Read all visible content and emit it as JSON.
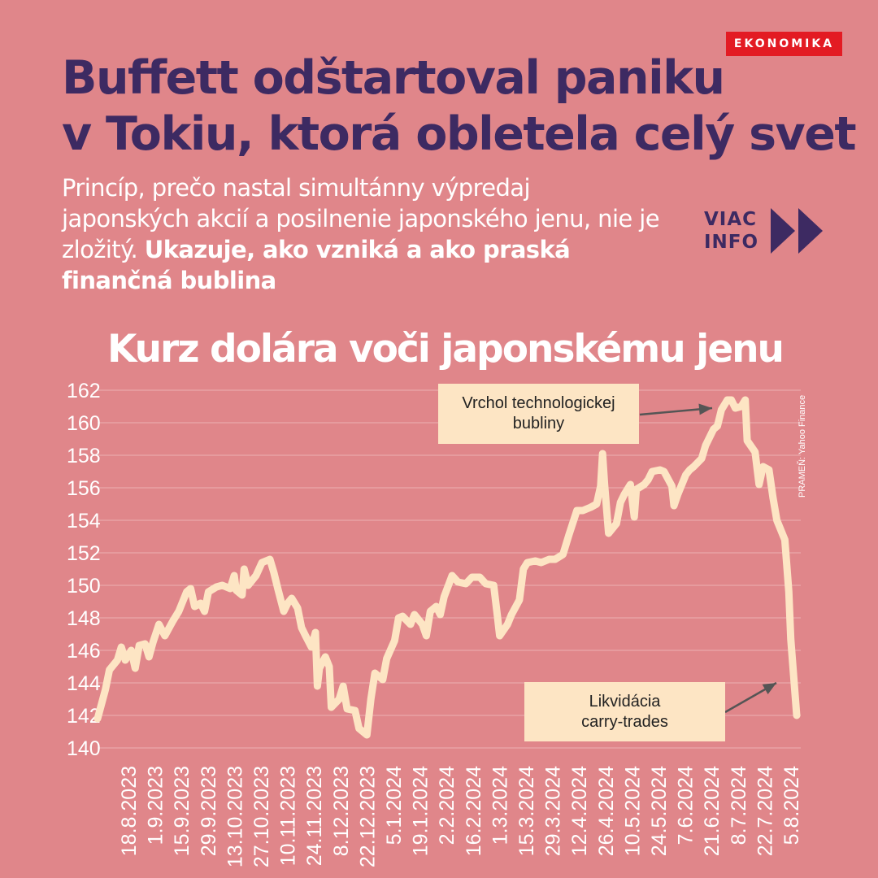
{
  "badge": "EKONOMIKA",
  "headline": {
    "line1": "Buffett odštartoval paniku",
    "line2": "v Tokiu, ktorá obletela celý svet"
  },
  "subtitle": {
    "regular": "Princíp, prečo nastal simultánny výpredaj japonských akcií a posilnenie japonského jenu, nie je zložitý. ",
    "bold": "Ukazuje, ako vzniká a ako praská finančná bublina"
  },
  "more_info": {
    "line1": "VIAC",
    "line2": "INFO"
  },
  "source": "PRAMEŇ: Yahoo Finance",
  "colors": {
    "background": "#e0868a",
    "line": "#fde5c4",
    "headline": "#3d2a62",
    "badge": "#e31b23",
    "callout_bg": "#fde5c4",
    "arrow": "#555555"
  },
  "chart_data": {
    "type": "line",
    "title": "Kurz dolára voči japonskému jenu",
    "xlabel": "",
    "ylabel": "",
    "ylim": [
      140,
      162
    ],
    "yticks": [
      162,
      160,
      158,
      156,
      154,
      152,
      150,
      148,
      146,
      144,
      142,
      140
    ],
    "grid": true,
    "x_tick_labels": [
      "18.8.2023",
      "1.9.2023",
      "15.9.2023",
      "29.9.2023",
      "13.10.2023",
      "27.10.2023",
      "10.11.2023",
      "24.11.2023",
      "8.12.2023",
      "22.12.2023",
      "5.1.2024",
      "19.1.2024",
      "2.2.2024",
      "16.2.2024",
      "1.3.2024",
      "15.3.2024",
      "29.3.2024",
      "12.4.2024",
      "26.4.2024",
      "10.5.2024",
      "24.5.2024",
      "7.6.2024",
      "21.6.2024",
      "8.7.2024",
      "22.7.2024",
      "5.8.2024"
    ],
    "x_start": "2023-08-18",
    "series": [
      {
        "name": "",
        "points": [
          [
            "2023-08-18",
            141.8
          ],
          [
            "2023-08-22",
            143.6
          ],
          [
            "2023-08-24",
            144.8
          ],
          [
            "2023-08-28",
            145.4
          ],
          [
            "2023-08-30",
            146.2
          ],
          [
            "2023-09-01",
            145.4
          ],
          [
            "2023-09-04",
            146.0
          ],
          [
            "2023-09-06",
            144.9
          ],
          [
            "2023-09-08",
            146.3
          ],
          [
            "2023-09-11",
            146.4
          ],
          [
            "2023-09-13",
            145.6
          ],
          [
            "2023-09-15",
            146.5
          ],
          [
            "2023-09-18",
            147.6
          ],
          [
            "2023-09-21",
            146.9
          ],
          [
            "2023-09-25",
            147.8
          ],
          [
            "2023-09-28",
            148.4
          ],
          [
            "2023-10-02",
            149.6
          ],
          [
            "2023-10-04",
            149.8
          ],
          [
            "2023-10-06",
            148.7
          ],
          [
            "2023-10-09",
            148.9
          ],
          [
            "2023-10-11",
            148.4
          ],
          [
            "2023-10-13",
            149.6
          ],
          [
            "2023-10-17",
            149.9
          ],
          [
            "2023-10-20",
            150.0
          ],
          [
            "2023-10-24",
            149.8
          ],
          [
            "2023-10-26",
            150.6
          ],
          [
            "2023-10-27",
            149.7
          ],
          [
            "2023-10-30",
            149.4
          ],
          [
            "2023-10-31",
            151.0
          ],
          [
            "2023-11-02",
            150.0
          ],
          [
            "2023-11-06",
            150.6
          ],
          [
            "2023-11-09",
            151.4
          ],
          [
            "2023-11-13",
            151.6
          ],
          [
            "2023-11-15",
            150.8
          ],
          [
            "2023-11-17",
            149.8
          ],
          [
            "2023-11-20",
            148.4
          ],
          [
            "2023-11-22",
            148.9
          ],
          [
            "2023-11-24",
            149.2
          ],
          [
            "2023-11-27",
            148.6
          ],
          [
            "2023-11-29",
            147.4
          ],
          [
            "2023-12-01",
            146.9
          ],
          [
            "2023-12-04",
            146.2
          ],
          [
            "2023-12-06",
            147.1
          ],
          [
            "2023-12-07",
            143.8
          ],
          [
            "2023-12-08",
            144.9
          ],
          [
            "2023-12-11",
            145.6
          ],
          [
            "2023-12-13",
            145.0
          ],
          [
            "2023-12-14",
            142.5
          ],
          [
            "2023-12-18",
            143.0
          ],
          [
            "2023-12-20",
            143.8
          ],
          [
            "2023-12-22",
            142.4
          ],
          [
            "2023-12-26",
            142.3
          ],
          [
            "2023-12-28",
            141.2
          ],
          [
            "2024-01-01",
            140.8
          ],
          [
            "2024-01-03",
            143.0
          ],
          [
            "2024-01-05",
            144.6
          ],
          [
            "2024-01-09",
            144.2
          ],
          [
            "2024-01-11",
            145.5
          ],
          [
            "2024-01-15",
            146.6
          ],
          [
            "2024-01-17",
            148.0
          ],
          [
            "2024-01-19",
            148.1
          ],
          [
            "2024-01-23",
            147.6
          ],
          [
            "2024-01-25",
            148.2
          ],
          [
            "2024-01-29",
            147.6
          ],
          [
            "2024-01-31",
            146.9
          ],
          [
            "2024-02-02",
            148.4
          ],
          [
            "2024-02-05",
            148.7
          ],
          [
            "2024-02-07",
            148.2
          ],
          [
            "2024-02-09",
            149.3
          ],
          [
            "2024-02-13",
            150.6
          ],
          [
            "2024-02-16",
            150.2
          ],
          [
            "2024-02-20",
            150.1
          ],
          [
            "2024-02-23",
            150.5
          ],
          [
            "2024-02-27",
            150.5
          ],
          [
            "2024-03-01",
            150.1
          ],
          [
            "2024-03-05",
            150.0
          ],
          [
            "2024-03-07",
            148.0
          ],
          [
            "2024-03-08",
            146.9
          ],
          [
            "2024-03-12",
            147.6
          ],
          [
            "2024-03-14",
            148.2
          ],
          [
            "2024-03-18",
            149.1
          ],
          [
            "2024-03-20",
            151.0
          ],
          [
            "2024-03-22",
            151.4
          ],
          [
            "2024-03-26",
            151.5
          ],
          [
            "2024-03-29",
            151.4
          ],
          [
            "2024-04-02",
            151.6
          ],
          [
            "2024-04-05",
            151.6
          ],
          [
            "2024-04-09",
            151.9
          ],
          [
            "2024-04-12",
            153.1
          ],
          [
            "2024-04-16",
            154.6
          ],
          [
            "2024-04-19",
            154.6
          ],
          [
            "2024-04-23",
            154.8
          ],
          [
            "2024-04-26",
            155.0
          ],
          [
            "2024-04-28",
            156.1
          ],
          [
            "2024-04-29",
            158.1
          ],
          [
            "2024-04-30",
            156.2
          ],
          [
            "2024-05-02",
            153.2
          ],
          [
            "2024-05-06",
            153.8
          ],
          [
            "2024-05-08",
            155.1
          ],
          [
            "2024-05-10",
            155.6
          ],
          [
            "2024-05-13",
            156.2
          ],
          [
            "2024-05-15",
            154.2
          ],
          [
            "2024-05-16",
            155.9
          ],
          [
            "2024-05-20",
            156.2
          ],
          [
            "2024-05-22",
            156.5
          ],
          [
            "2024-05-24",
            157.0
          ],
          [
            "2024-05-28",
            157.1
          ],
          [
            "2024-05-30",
            157.0
          ],
          [
            "2024-06-03",
            156.1
          ],
          [
            "2024-06-04",
            154.9
          ],
          [
            "2024-06-06",
            155.6
          ],
          [
            "2024-06-10",
            156.8
          ],
          [
            "2024-06-12",
            157.1
          ],
          [
            "2024-06-14",
            157.3
          ],
          [
            "2024-06-18",
            157.8
          ],
          [
            "2024-06-20",
            158.6
          ],
          [
            "2024-06-24",
            159.6
          ],
          [
            "2024-06-26",
            159.8
          ],
          [
            "2024-06-28",
            160.8
          ],
          [
            "2024-07-01",
            161.4
          ],
          [
            "2024-07-03",
            161.4
          ],
          [
            "2024-07-05",
            160.9
          ],
          [
            "2024-07-08",
            161.0
          ],
          [
            "2024-07-10",
            161.4
          ],
          [
            "2024-07-11",
            158.9
          ],
          [
            "2024-07-15",
            158.2
          ],
          [
            "2024-07-17",
            156.2
          ],
          [
            "2024-07-19",
            157.3
          ],
          [
            "2024-07-22",
            157.1
          ],
          [
            "2024-07-24",
            155.4
          ],
          [
            "2024-07-26",
            154.0
          ],
          [
            "2024-07-30",
            152.8
          ],
          [
            "2024-08-01",
            149.6
          ],
          [
            "2024-08-02",
            146.7
          ],
          [
            "2024-08-05",
            142.0
          ]
        ]
      }
    ],
    "annotations": [
      {
        "text_line1": "Vrchol technologickej",
        "text_line2": "bubliny"
      },
      {
        "text_line1": "Likvidácia",
        "text_line2": "carry-trades"
      }
    ]
  }
}
